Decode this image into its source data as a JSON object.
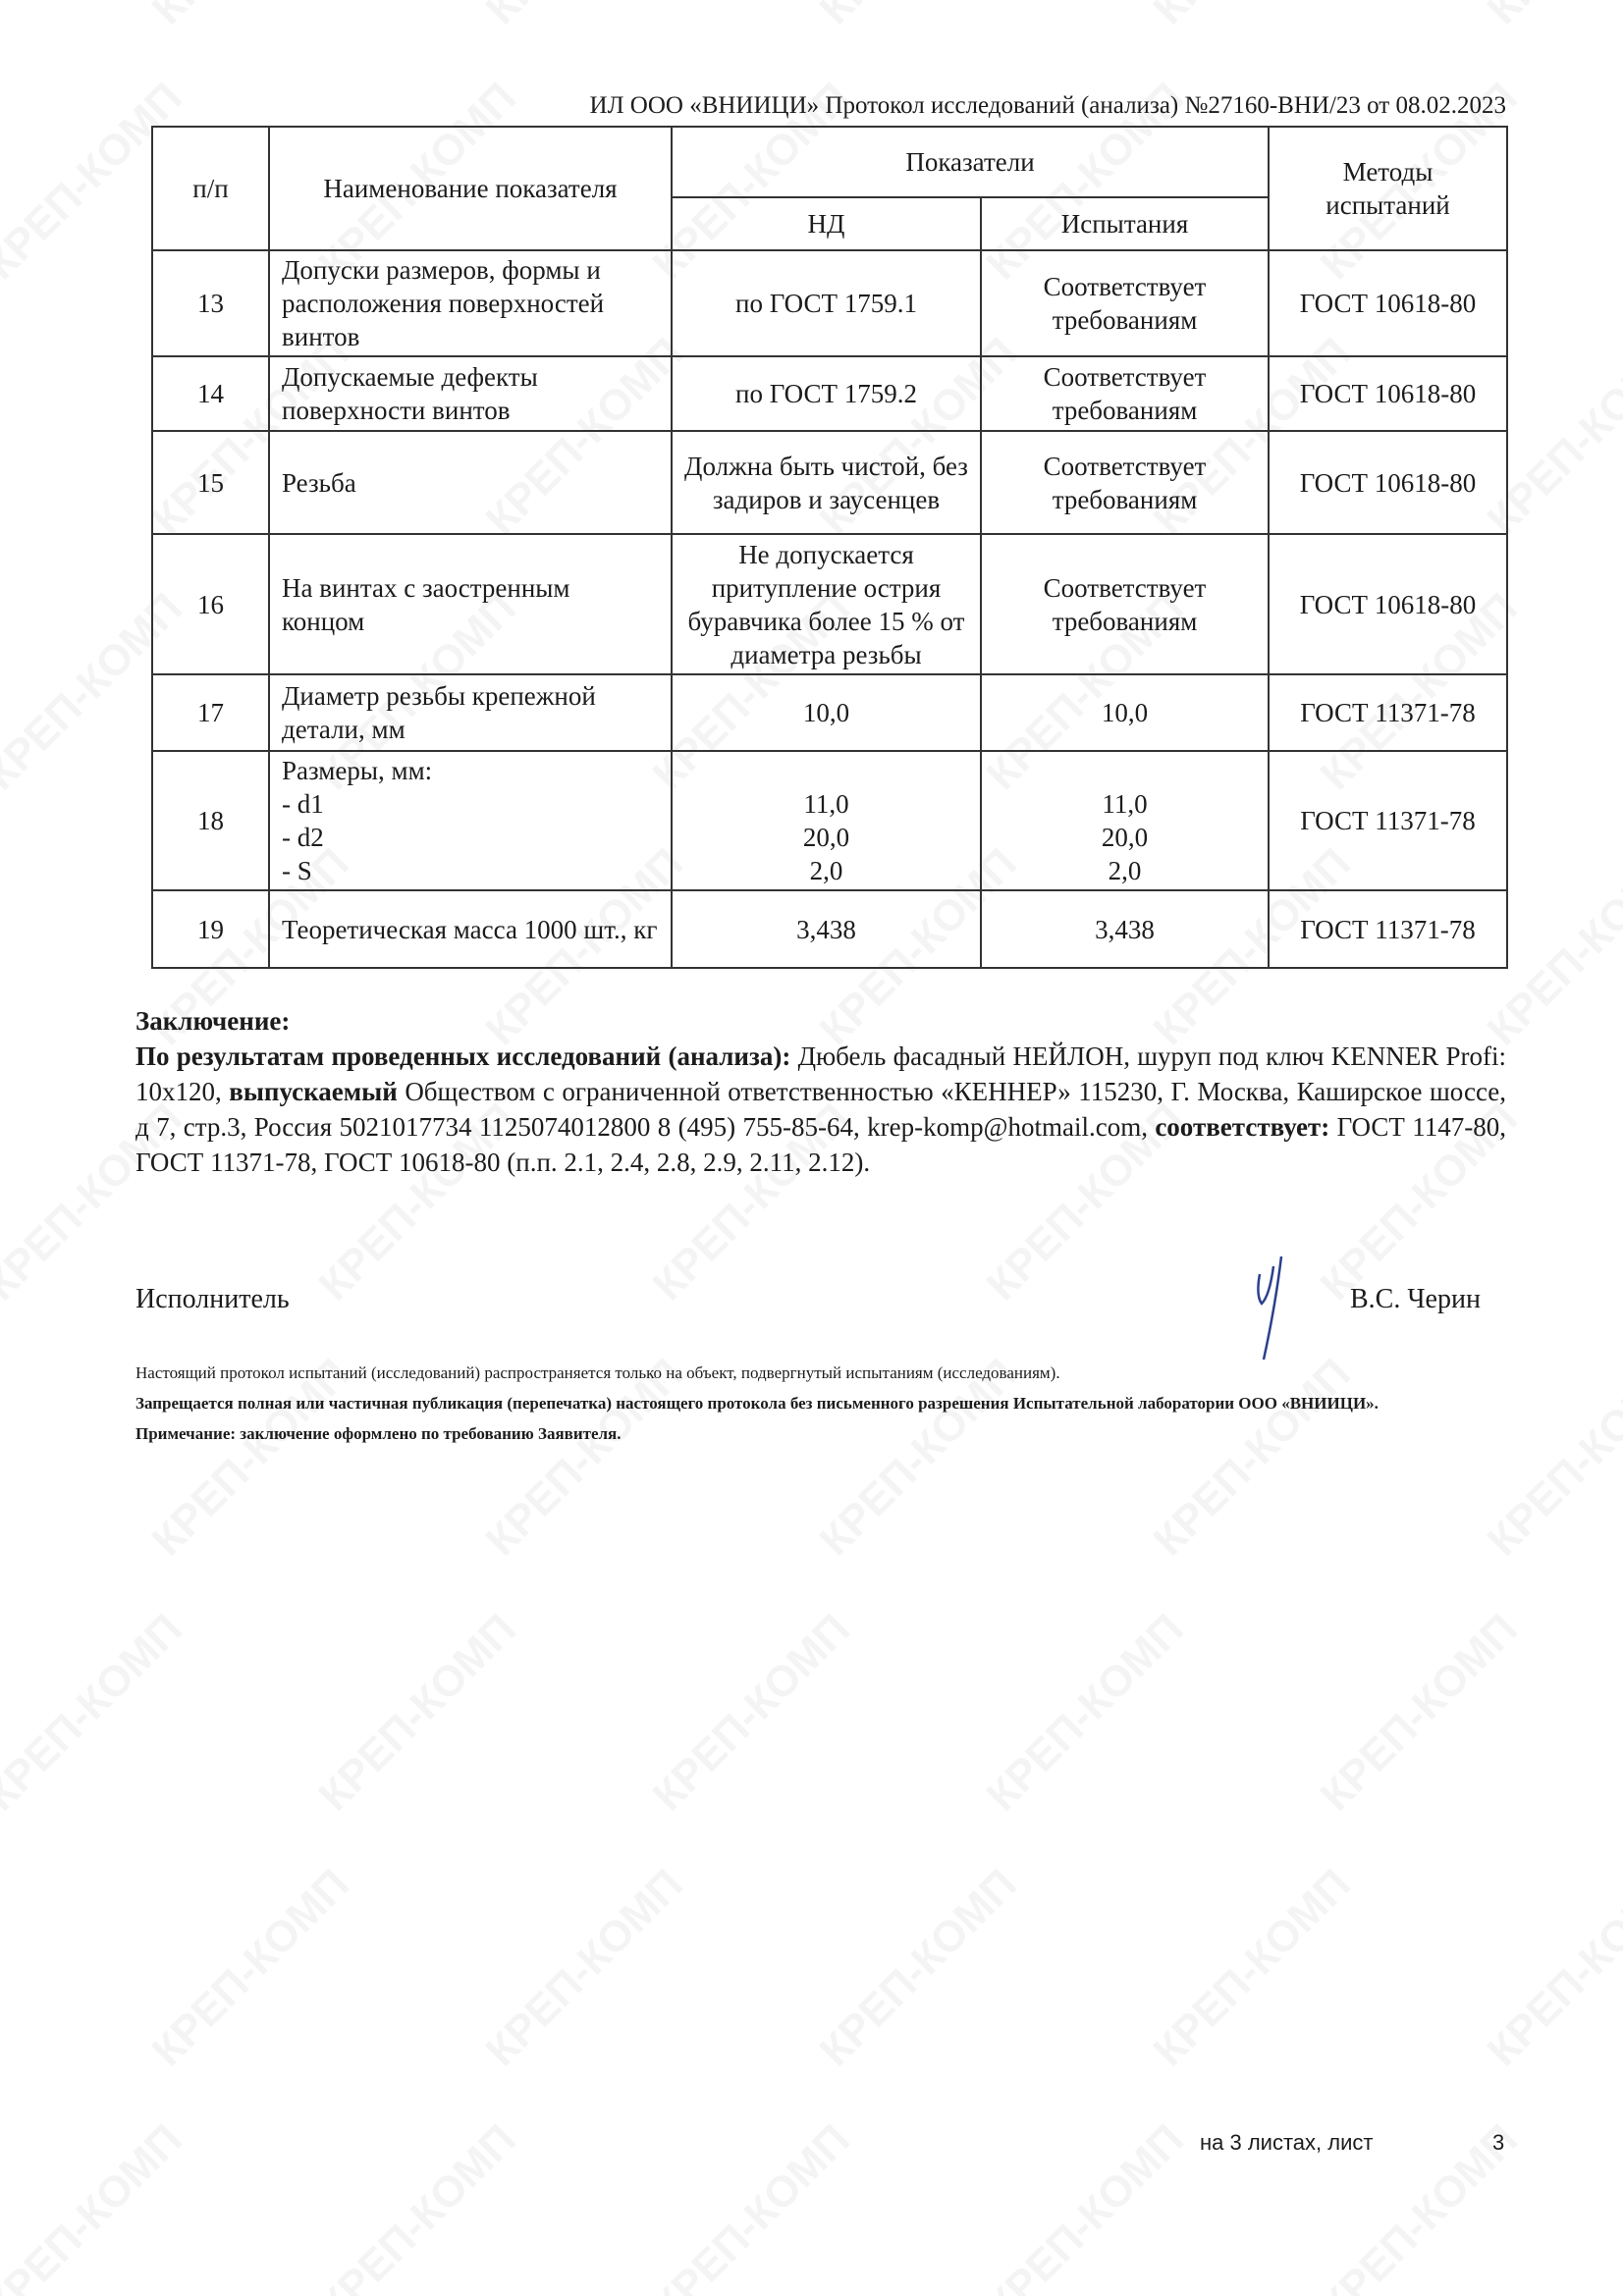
{
  "watermark": "КРЕП-КОМП",
  "header": "ИЛ ООО «ВНИИЦИ» Протокол исследований (анализа)  №27160-ВНИ/23 от  08.02.2023",
  "table": {
    "headers": {
      "num": "п/п",
      "name": "Наименование показателя",
      "indicators": "Показатели",
      "nd": "НД",
      "test": "Испытания",
      "methods": "Методы испытаний"
    },
    "rows": [
      {
        "num": "13",
        "name": "Допуски размеров, формы и расположения поверхностей винтов",
        "nd": "по ГОСТ 1759.1",
        "test": "Соответствует требованиям",
        "method": "ГОСТ 10618-80"
      },
      {
        "num": "14",
        "name": "Допускаемые дефекты поверхности винтов",
        "nd": "по ГОСТ 1759.2",
        "test": "Соответствует требованиям",
        "method": "ГОСТ 10618-80"
      },
      {
        "num": "15",
        "name": "Резьба",
        "nd": "Должна быть чистой, без задиров и заусенцев",
        "test": "Соответствует требованиям",
        "method": "ГОСТ 10618-80"
      },
      {
        "num": "16",
        "name": "На винтах с заостренным концом",
        "nd": "Не допускается притупление острия буравчика более 15 % от диаметра резьбы",
        "test": "Соответствует требованиям",
        "method": "ГОСТ 10618-80"
      },
      {
        "num": "17",
        "name": "Диаметр резьбы крепежной детали, мм",
        "nd": "10,0",
        "test": "10,0",
        "method": "ГОСТ 11371-78"
      },
      {
        "num": "18",
        "name_title": "Размеры, мм:",
        "name_items": [
          "- d1",
          "- d2",
          "- S"
        ],
        "nd": [
          "11,0",
          "20,0",
          "2,0"
        ],
        "test": [
          "11,0",
          "20,0",
          "2,0"
        ],
        "method": "ГОСТ 11371-78"
      },
      {
        "num": "19",
        "name": "Теоретическая масса 1000 шт., кг",
        "nd": "3,438",
        "test": "3,438",
        "method": "ГОСТ 11371-78"
      }
    ]
  },
  "conclusion": {
    "title": "Заключение:",
    "lead": "По результатам проведенных исследований (анализа):",
    "text1": " Дюбель фасадный НЕЙЛОН, шуруп под ключ KENNER Profi: 10x120, ",
    "bold2": "выпускаемый",
    "text2": " Обществом с ограниченной ответственностью «КЕННЕР»  115230, Г. Москва, Каширское шоссе, д 7, стр.3, Россия 5021017734 1125074012800 8 (495) 755-85-64, krep-komp@hotmail.com, ",
    "bold3": "соответствует:",
    "text3": " ГОСТ 1147-80, ГОСТ 11371-78, ГОСТ 10618-80 (п.п. 2.1, 2.4, 2.8, 2.9, 2.11, 2.12)."
  },
  "executor": {
    "label": "Исполнитель",
    "name": "В.С. Черин"
  },
  "notes": [
    "Настоящий протокол испытаний (исследований) распространяется только на объект, подвергнутый испытаниям (исследованиям).",
    "Запрещается полная или частичная публикация (перепечатка) настоящего протокола без письменного разрешения Испытательной лаборатории  ООО «ВНИИЦИ».",
    "Примечание: заключение оформлено по требованию Заявителя."
  ],
  "footer": {
    "sheets": "на 3  листах, лист",
    "page": "3"
  }
}
